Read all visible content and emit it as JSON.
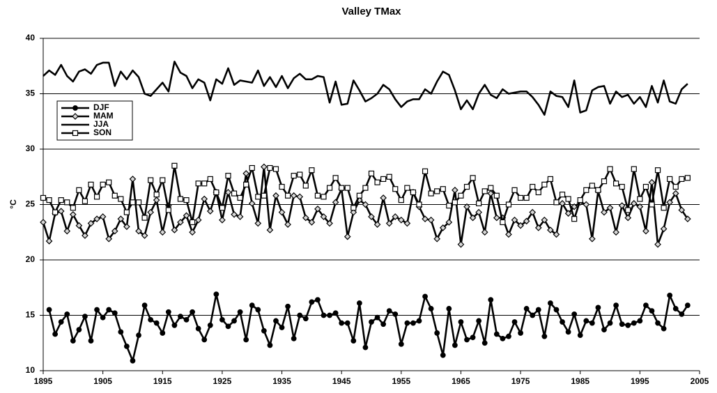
{
  "chart_data": {
    "type": "line",
    "title": "Valley TMax",
    "y_label": "°C",
    "x": [
      1895,
      1896,
      1897,
      1898,
      1899,
      1900,
      1901,
      1902,
      1903,
      1904,
      1905,
      1906,
      1907,
      1908,
      1909,
      1910,
      1911,
      1912,
      1913,
      1914,
      1915,
      1916,
      1917,
      1918,
      1919,
      1920,
      1921,
      1922,
      1923,
      1924,
      1925,
      1926,
      1927,
      1928,
      1929,
      1930,
      1931,
      1932,
      1933,
      1934,
      1935,
      1936,
      1937,
      1938,
      1939,
      1940,
      1941,
      1942,
      1943,
      1944,
      1945,
      1946,
      1947,
      1948,
      1949,
      1950,
      1951,
      1952,
      1953,
      1954,
      1955,
      1956,
      1957,
      1958,
      1959,
      1960,
      1961,
      1962,
      1963,
      1964,
      1965,
      1966,
      1967,
      1968,
      1969,
      1970,
      1971,
      1972,
      1973,
      1974,
      1975,
      1976,
      1977,
      1978,
      1979,
      1980,
      1981,
      1982,
      1983,
      1984,
      1985,
      1986,
      1987,
      1988,
      1989,
      1990,
      1991,
      1992,
      1993,
      1994,
      1995,
      1996,
      1997,
      1998,
      1999,
      2000,
      2001,
      2002,
      2003
    ],
    "series": [
      {
        "name": "DJF",
        "color": "#000000",
        "marker": "circle",
        "marker_fill": "#000000",
        "values": [
          null,
          15.5,
          13.3,
          14.4,
          15.1,
          12.7,
          13.7,
          14.9,
          12.7,
          15.5,
          14.8,
          15.5,
          15.2,
          13.5,
          12.2,
          10.9,
          13.2,
          15.9,
          14.6,
          14.3,
          13.4,
          15.3,
          14.1,
          14.9,
          14.6,
          15.3,
          13.8,
          12.8,
          14.1,
          16.9,
          14.6,
          14.0,
          14.5,
          15.3,
          12.8,
          15.9,
          15.5,
          13.6,
          12.3,
          14.5,
          13.9,
          15.8,
          12.9,
          15.0,
          14.7,
          16.2,
          16.4,
          15.0,
          15.0,
          15.2,
          14.3,
          14.3,
          12.7,
          16.1,
          12.1,
          14.4,
          14.8,
          14.2,
          15.4,
          15.1,
          12.4,
          14.3,
          14.3,
          14.5,
          16.7,
          15.6,
          13.4,
          11.4,
          15.6,
          12.3,
          14.4,
          12.8,
          13.0,
          14.5,
          12.5,
          16.4,
          13.3,
          12.9,
          13.1,
          14.4,
          13.4,
          15.6,
          15.0,
          15.5,
          13.1,
          16.1,
          15.5,
          14.4,
          13.5,
          15.1,
          13.2,
          14.5,
          14.3,
          15.7,
          13.7,
          14.3,
          15.9,
          14.2,
          14.1,
          14.3,
          14.5,
          15.9,
          15.4,
          14.3,
          13.8,
          16.8,
          15.6,
          15.1,
          15.9
        ]
      },
      {
        "name": "MAM",
        "color": "#000000",
        "marker": "diamond",
        "marker_fill": "#d9d9d9",
        "values": [
          23.4,
          21.7,
          24.2,
          24.4,
          22.6,
          24.1,
          23.1,
          22.2,
          23.3,
          23.7,
          23.9,
          21.9,
          22.6,
          23.7,
          23.0,
          27.3,
          22.6,
          22.2,
          24.3,
          25.4,
          22.5,
          24.9,
          22.7,
          23.4,
          24.0,
          22.5,
          23.6,
          25.5,
          24.4,
          26.1,
          23.6,
          26.1,
          24.1,
          23.9,
          27.8,
          25.1,
          23.3,
          28.4,
          22.7,
          25.8,
          24.3,
          23.2,
          25.8,
          25.7,
          23.8,
          23.4,
          24.6,
          23.9,
          23.3,
          25.2,
          26.4,
          22.1,
          24.3,
          25.4,
          25.0,
          23.9,
          23.2,
          25.6,
          23.3,
          23.9,
          23.6,
          23.3,
          26.1,
          24.8,
          23.7,
          23.6,
          21.9,
          22.9,
          23.4,
          26.3,
          21.4,
          24.8,
          23.8,
          24.3,
          22.5,
          26.0,
          23.8,
          23.8,
          22.3,
          23.6,
          23.1,
          23.5,
          24.3,
          22.9,
          23.6,
          22.7,
          22.3,
          25.1,
          24.2,
          24.8,
          25.2,
          25.0,
          21.9,
          26.2,
          24.3,
          24.7,
          22.5,
          24.9,
          23.8,
          25.1,
          24.8,
          22.6,
          27.0,
          21.4,
          22.8,
          25.2,
          26.0,
          24.5,
          23.7
        ]
      },
      {
        "name": "JJA",
        "color": "#000000",
        "marker": "none",
        "values": [
          36.6,
          37.1,
          36.7,
          37.6,
          36.6,
          36.1,
          37.0,
          37.2,
          36.8,
          37.6,
          37.8,
          37.8,
          35.7,
          37.0,
          36.3,
          37.1,
          36.5,
          35.0,
          34.8,
          35.4,
          36.0,
          35.2,
          37.9,
          36.9,
          36.6,
          35.5,
          36.3,
          36.0,
          34.4,
          36.3,
          35.9,
          37.3,
          35.8,
          36.2,
          36.1,
          36.0,
          37.1,
          35.7,
          36.5,
          35.6,
          36.6,
          35.5,
          36.4,
          36.8,
          36.3,
          36.3,
          36.6,
          36.5,
          34.2,
          36.1,
          34.0,
          34.1,
          36.2,
          35.3,
          34.3,
          34.6,
          35.0,
          35.8,
          35.4,
          34.5,
          33.8,
          34.3,
          34.5,
          34.5,
          35.4,
          35.0,
          36.1,
          37.0,
          36.7,
          35.3,
          33.6,
          34.4,
          33.6,
          35.0,
          35.8,
          34.9,
          34.6,
          35.4,
          35.0,
          35.1,
          35.2,
          35.2,
          34.7,
          34.0,
          33.1,
          35.2,
          34.8,
          34.7,
          33.8,
          36.2,
          33.3,
          33.5,
          35.3,
          35.6,
          35.7,
          34.1,
          35.2,
          34.7,
          34.9,
          34.1,
          34.7,
          33.8,
          35.7,
          34.2,
          36.2,
          34.3,
          34.1,
          35.4,
          35.9
        ]
      },
      {
        "name": "SON",
        "color": "#000000",
        "marker": "square",
        "marker_fill": "#ffffff",
        "values": [
          25.6,
          25.4,
          24.3,
          25.4,
          25.2,
          24.7,
          26.3,
          25.3,
          26.8,
          25.7,
          26.8,
          27.0,
          25.8,
          25.5,
          24.3,
          25.2,
          25.2,
          23.8,
          27.2,
          25.9,
          27.2,
          24.5,
          28.5,
          25.5,
          25.4,
          23.4,
          26.9,
          26.9,
          27.3,
          26.1,
          24.7,
          27.6,
          26.0,
          25.6,
          26.8,
          28.3,
          25.7,
          25.8,
          28.3,
          28.2,
          26.6,
          25.8,
          27.6,
          27.7,
          26.7,
          28.1,
          25.8,
          25.7,
          26.5,
          27.4,
          26.5,
          26.5,
          24.7,
          25.8,
          26.5,
          27.8,
          27.0,
          27.3,
          27.5,
          26.4,
          25.4,
          26.5,
          26.1,
          25.0,
          28.0,
          26.0,
          26.2,
          26.4,
          24.9,
          25.2,
          25.8,
          26.6,
          27.4,
          25.1,
          26.2,
          26.5,
          25.8,
          23.4,
          25.0,
          26.3,
          25.6,
          25.6,
          26.6,
          26.1,
          26.8,
          27.3,
          25.2,
          25.9,
          25.5,
          23.7,
          25.4,
          26.3,
          26.7,
          26.3,
          27.1,
          28.2,
          26.9,
          26.6,
          24.5,
          28.2,
          25.5,
          26.6,
          25.0,
          28.1,
          24.7,
          27.3,
          26.6,
          27.3,
          27.4
        ]
      }
    ],
    "xlim": [
      1895,
      2005
    ],
    "xticks": [
      1895,
      1905,
      1915,
      1925,
      1935,
      1945,
      1955,
      1965,
      1975,
      1985,
      1995,
      2005
    ],
    "ylim": [
      10,
      40
    ],
    "yticks": [
      10,
      15,
      20,
      25,
      30,
      35,
      40
    ],
    "grid": true,
    "legend": "upper-left"
  }
}
